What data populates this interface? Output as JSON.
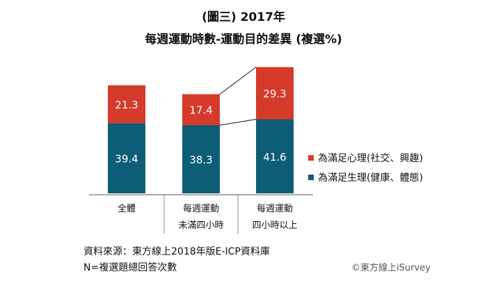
{
  "header": {
    "title_line1": "(圖三) 2017年",
    "title_line2": "每週運動時數-運動目的差異 (複選%)"
  },
  "colors": {
    "psych": "#d63a2b",
    "physio": "#0e5d77",
    "connector": "#111111",
    "axis": "#555555"
  },
  "chart_data": {
    "type": "bar",
    "stacked": true,
    "categories": [
      [
        "全體"
      ],
      [
        "每週運動",
        "未滿四小時"
      ],
      [
        "每週運動",
        "四小時以上"
      ]
    ],
    "series": [
      {
        "name": "為滿足生理(健康、體態)",
        "values": [
          39.4,
          38.3,
          41.6
        ],
        "color": "#0e5d77"
      },
      {
        "name": "為滿足心理(社交、興趣)",
        "values": [
          21.3,
          17.4,
          29.3
        ],
        "color": "#d63a2b"
      }
    ],
    "legend_position": "right",
    "connector_lines": true
  },
  "footer": {
    "source": "資料來源：東方線上2018年版E-ICP資料庫",
    "note": "N=複選題總回答次數",
    "copyright": "©東方線上iSurvey"
  }
}
